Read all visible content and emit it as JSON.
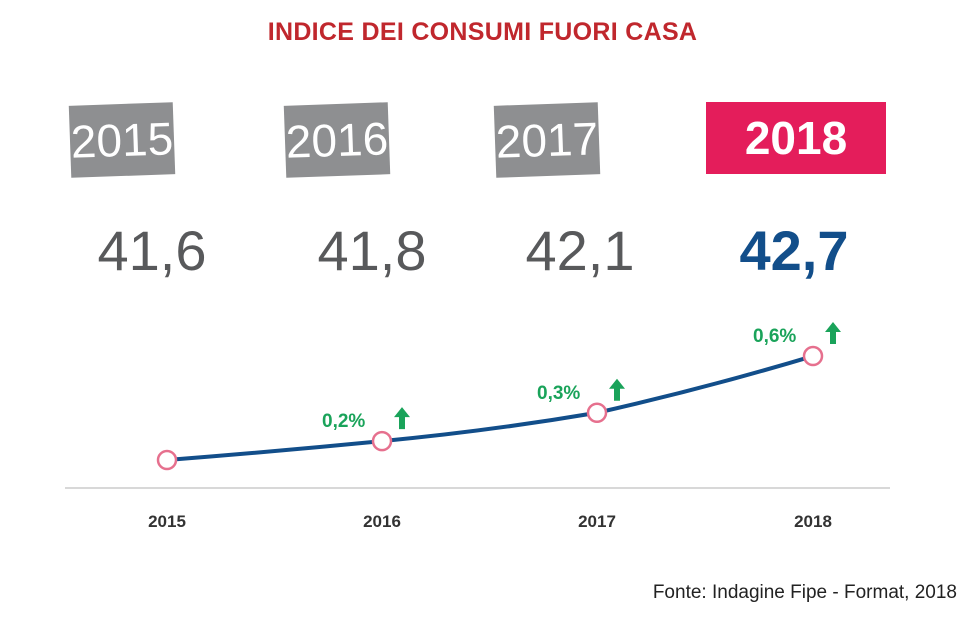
{
  "chart_data": {
    "type": "line",
    "title": "INDICE DEI CONSUMI FUORI CASA",
    "categories": [
      "2015",
      "2016",
      "2017",
      "2018"
    ],
    "values": [
      41.6,
      41.8,
      42.1,
      42.7
    ],
    "value_labels": [
      "41,6",
      "41,8",
      "42,1",
      "42,7"
    ],
    "growth_labels": [
      "",
      "0,2%",
      "0,3%",
      "0,6%"
    ],
    "highlight_index": 3,
    "xlabel": "",
    "ylabel": "",
    "grid": false,
    "colors": {
      "line": "#124e8a",
      "marker": "#e6708e",
      "growth": "#1aa35a",
      "highlight": "#e41d5b",
      "box": "#8e8f91"
    }
  },
  "source": "Fonte: Indagine Fipe - Format, 2018"
}
